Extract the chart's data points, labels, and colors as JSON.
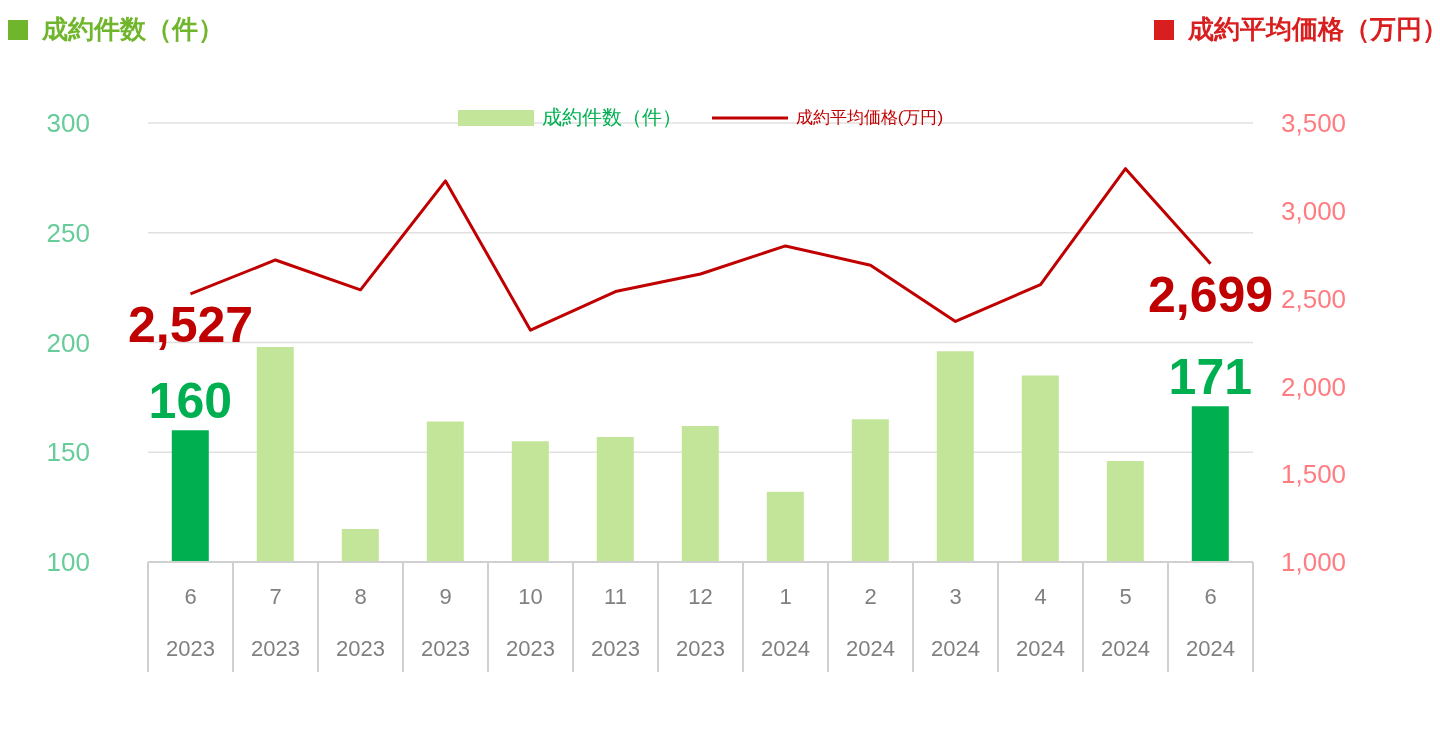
{
  "chart_data": {
    "type": "bar",
    "ylabel": "成約件数（件）",
    "y2label": "成約平均価格（万円）",
    "categories": [
      "6\n2023",
      "7\n2023",
      "8\n2023",
      "9\n2023",
      "10\n2023",
      "11\n2023",
      "12\n2023",
      "1\n2024",
      "2\n2024",
      "3\n2024",
      "4\n2024",
      "5\n2024",
      "6\n2024"
    ],
    "series": [
      {
        "name": "成約件数（件）",
        "color": "#c3e59a",
        "colors": [
          "#00b050",
          "#c3e59a",
          "#c3e59a",
          "#c3e59a",
          "#c3e59a",
          "#c3e59a",
          "#c3e59a",
          "#c3e59a",
          "#c3e59a",
          "#c3e59a",
          "#c3e59a",
          "#c3e59a",
          "#00b050"
        ],
        "values": [
          160,
          198,
          115,
          164,
          155,
          157,
          162,
          132,
          165,
          196,
          185,
          146,
          171
        ],
        "value_labels": [
          "160",
          null,
          null,
          null,
          null,
          null,
          null,
          null,
          null,
          null,
          null,
          null,
          "171"
        ]
      },
      {
        "name": "成約平均価格(万円)",
        "type": "line",
        "axis": "y2",
        "color": "#c00000",
        "values": [
          2527,
          2720,
          2550,
          3170,
          2320,
          2540,
          2640,
          2800,
          2690,
          2370,
          2580,
          3240,
          2699
        ],
        "value_labels": [
          "2,527",
          null,
          null,
          null,
          null,
          null,
          null,
          null,
          null,
          null,
          null,
          null,
          "2,699"
        ]
      }
    ],
    "ylim": [
      100,
      300
    ],
    "yticks": [
      100,
      150,
      200,
      250,
      300
    ],
    "y2lim": [
      1000,
      3500
    ],
    "y2ticks": [
      {
        "value": 1000,
        "label": "1,000"
      },
      {
        "value": 1500,
        "label": "1,500"
      },
      {
        "value": 2000,
        "label": "2,000"
      },
      {
        "value": 2500,
        "label": "2,500"
      },
      {
        "value": 3000,
        "label": "3,000"
      },
      {
        "value": 3500,
        "label": "3,500"
      }
    ],
    "grid": "y",
    "legend": "top",
    "marker": "none"
  }
}
